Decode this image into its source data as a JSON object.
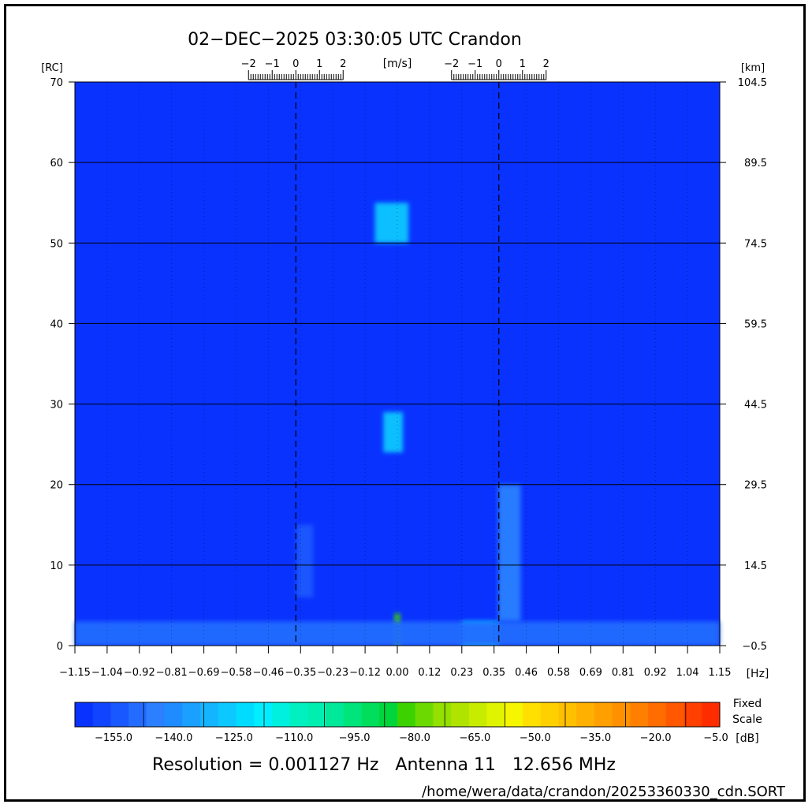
{
  "title": "02−DEC−2025 03:30:05 UTC   Crandon",
  "footer": {
    "resolution": "Resolution = 0.001127 Hz   Antenna 11   12.656 MHz",
    "path": "/home/wera/data/crandon/20253360330_cdn.SORT"
  },
  "chart_data": {
    "type": "heatmap",
    "title": "02−DEC−2025 03:30:05 UTC   Crandon",
    "xlabel": "[Hz]",
    "ylabel_left": "[RC]",
    "ylabel_right": "[km]",
    "xlim": [
      -1.15,
      1.15
    ],
    "ylim": [
      0,
      70
    ],
    "x_ticks": [
      "−1.15",
      "−1.04",
      "−0.92",
      "−0.81",
      "−0.69",
      "−0.58",
      "−0.46",
      "−0.35",
      "−0.23",
      "−0.12",
      "0.00",
      "0.12",
      "0.23",
      "0.35",
      "0.46",
      "0.58",
      "0.69",
      "0.81",
      "0.92",
      "1.04",
      "1.15"
    ],
    "y_ticks_left": [
      "0",
      "10",
      "20",
      "30",
      "40",
      "50",
      "60",
      "70"
    ],
    "y_ticks_right": [
      "−0.5",
      "14.5",
      "29.5",
      "44.5",
      "59.5",
      "74.5",
      "89.5",
      "104.5"
    ],
    "velocity_scale_label": "[m/s]",
    "velocity_ticks": [
      "−2",
      "−1",
      "0",
      "1",
      "2"
    ],
    "bragg_lines_hz": [
      -0.362,
      0.362
    ],
    "background_level_db": -155,
    "features": [
      {
        "x_range": [
          -0.08,
          0.04
        ],
        "y_range": [
          50,
          55
        ],
        "level_db": -120
      },
      {
        "x_range": [
          -0.05,
          0.02
        ],
        "y_range": [
          24,
          29
        ],
        "level_db": -120
      },
      {
        "x_range": [
          0.23,
          0.36
        ],
        "y_range": [
          0,
          3
        ],
        "level_db": -115
      },
      {
        "x_range": [
          0.36,
          0.44
        ],
        "y_range": [
          3,
          20
        ],
        "level_db": -135
      },
      {
        "x_range": [
          -0.36,
          -0.3
        ],
        "y_range": [
          6,
          15
        ],
        "level_db": -145
      },
      {
        "x_range": [
          -0.01,
          0.01
        ],
        "y_range": [
          0,
          4
        ],
        "level_db": -80
      },
      {
        "x_range": [
          -1.15,
          1.15
        ],
        "y_range": [
          0,
          3
        ],
        "level_db": -140
      }
    ],
    "colorbar": {
      "label_top": "Fixed",
      "label_mid": "Scale",
      "unit": "[dB]",
      "ticks": [
        "−155.0",
        "−140.0",
        "−125.0",
        "−110.0",
        "−95.0",
        "−80.0",
        "−65.0",
        "−50.0",
        "−35.0",
        "−20.0",
        "−5.0"
      ],
      "colors": [
        "#0a32ff",
        "#1044ff",
        "#1a58ff",
        "#246cff",
        "#2c80ff",
        "#1e8cff",
        "#1aa0ff",
        "#14b4ff",
        "#0cc8ff",
        "#00dcff",
        "#00eeff",
        "#00f0e0",
        "#00f0c0",
        "#00eeb0",
        "#00e89a",
        "#00e47c",
        "#00de5c",
        "#00d63c",
        "#3cd200",
        "#6cda00",
        "#94e000",
        "#b0e400",
        "#c8ec00",
        "#e0f400",
        "#f6f600",
        "#ffe000",
        "#ffd000",
        "#ffc000",
        "#ffb000",
        "#ffa000",
        "#ff9000",
        "#ff8000",
        "#ff6c00",
        "#ff5800",
        "#ff4000",
        "#ff2c00"
      ]
    }
  }
}
